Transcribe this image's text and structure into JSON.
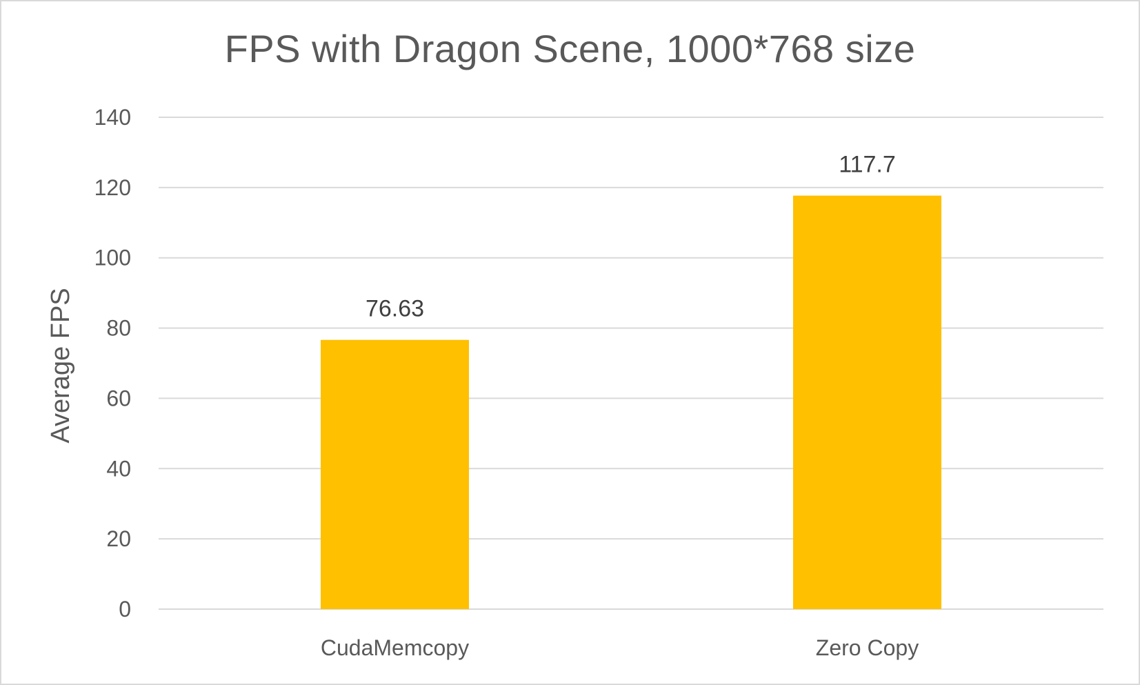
{
  "chart_data": {
    "type": "bar",
    "title": "FPS with Dragon Scene, 1000*768 size",
    "xlabel": "",
    "ylabel": "Average FPS",
    "categories": [
      "CudaMemcopy",
      "Zero Copy"
    ],
    "values": [
      76.63,
      117.7
    ],
    "data_labels": [
      "76.63",
      "117.7"
    ],
    "ylim": [
      0,
      140
    ],
    "yticks": [
      0,
      20,
      40,
      60,
      80,
      100,
      120,
      140
    ],
    "ytick_labels": [
      "0",
      "20",
      "40",
      "60",
      "80",
      "100",
      "120",
      "140"
    ],
    "grid": true,
    "legend": "none",
    "bar_color": "#FFC000",
    "gridline_color": "#d9d9d9"
  }
}
